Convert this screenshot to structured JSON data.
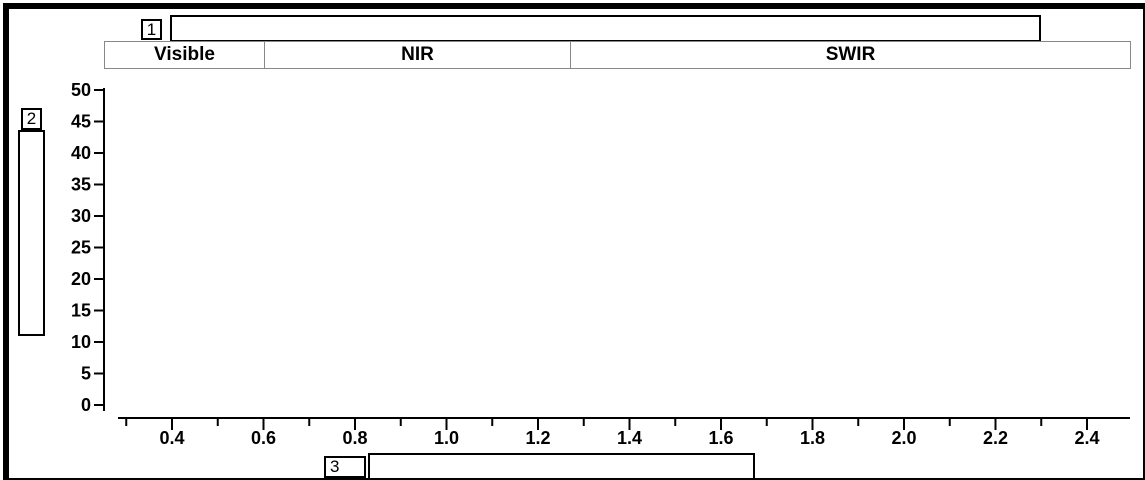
{
  "markers": {
    "title_number": "1",
    "ylabel_number": "2",
    "xlabel_number": "3"
  },
  "chart_data": {
    "type": "line",
    "title": "",
    "xlabel": "",
    "ylabel": "",
    "regions": [
      {
        "label": "Visible",
        "from": 0.3,
        "to": 0.65
      },
      {
        "label": "NIR",
        "from": 0.65,
        "to": 1.3
      },
      {
        "label": "SWIR",
        "from": 1.3,
        "to": 2.5
      }
    ],
    "xlim": [
      0.3,
      2.5
    ],
    "ylim": [
      0,
      50
    ],
    "x_ticks": [
      0.4,
      0.6,
      0.8,
      1.0,
      1.2,
      1.4,
      1.6,
      1.8,
      2.0,
      2.2,
      2.4
    ],
    "x_tick_labels": [
      "0.4",
      "0.6",
      "0.8",
      "1.0",
      "1.2",
      "1.4",
      "1.6",
      "1.8",
      "2.0",
      "2.2",
      "2.4"
    ],
    "y_ticks": [
      0,
      5,
      10,
      15,
      20,
      25,
      30,
      35,
      40,
      45,
      50
    ],
    "y_tick_labels": [
      "0",
      "5",
      "10",
      "15",
      "20",
      "25",
      "30",
      "35",
      "40",
      "45",
      "50"
    ],
    "grid": false,
    "series": []
  }
}
